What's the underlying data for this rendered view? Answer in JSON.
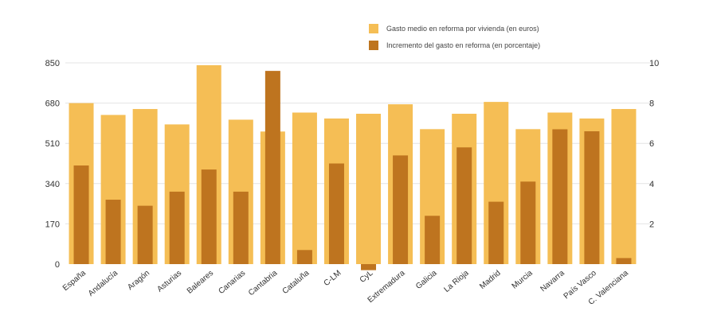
{
  "chart_data": {
    "type": "bar",
    "categories": [
      "España",
      "Andalucía",
      "Aragón",
      "Asturias",
      "Baleares",
      "Canarias",
      "Cantabria",
      "Cataluña",
      "C-LM",
      "CyL",
      "Extremadura",
      "Galicia",
      "La Rioja",
      "Madrid",
      "Murcia",
      "Navarra",
      "País Vasco",
      "C. Valenciana"
    ],
    "series": [
      {
        "name": "Gasto medio en reforma por vivienda (en euros)",
        "axis": "left",
        "color": "#F5BE55",
        "values": [
          680,
          630,
          655,
          590,
          840,
          610,
          560,
          640,
          615,
          635,
          675,
          570,
          635,
          685,
          570,
          640,
          615,
          655
        ]
      },
      {
        "name": "Incremento del gasto en reforma (en porcentaje)",
        "axis": "right",
        "color": "#BE741F",
        "values": [
          4.9,
          3.2,
          2.9,
          3.6,
          4.7,
          3.6,
          9.6,
          0.7,
          5.0,
          -0.3,
          5.4,
          2.4,
          5.8,
          3.1,
          4.1,
          6.7,
          6.6,
          0.3
        ]
      }
    ],
    "y_left": {
      "ticks": [
        "850",
        "680",
        "510",
        "340",
        "170",
        "0"
      ],
      "ylim": [
        0,
        850
      ]
    },
    "y_right": {
      "ticks": [
        "10",
        "8",
        "6",
        "4",
        "2"
      ],
      "ylim": [
        0,
        10
      ]
    },
    "title": "",
    "xlabel": "",
    "ylabel": "",
    "grid": true,
    "legend_position": "top-right"
  }
}
